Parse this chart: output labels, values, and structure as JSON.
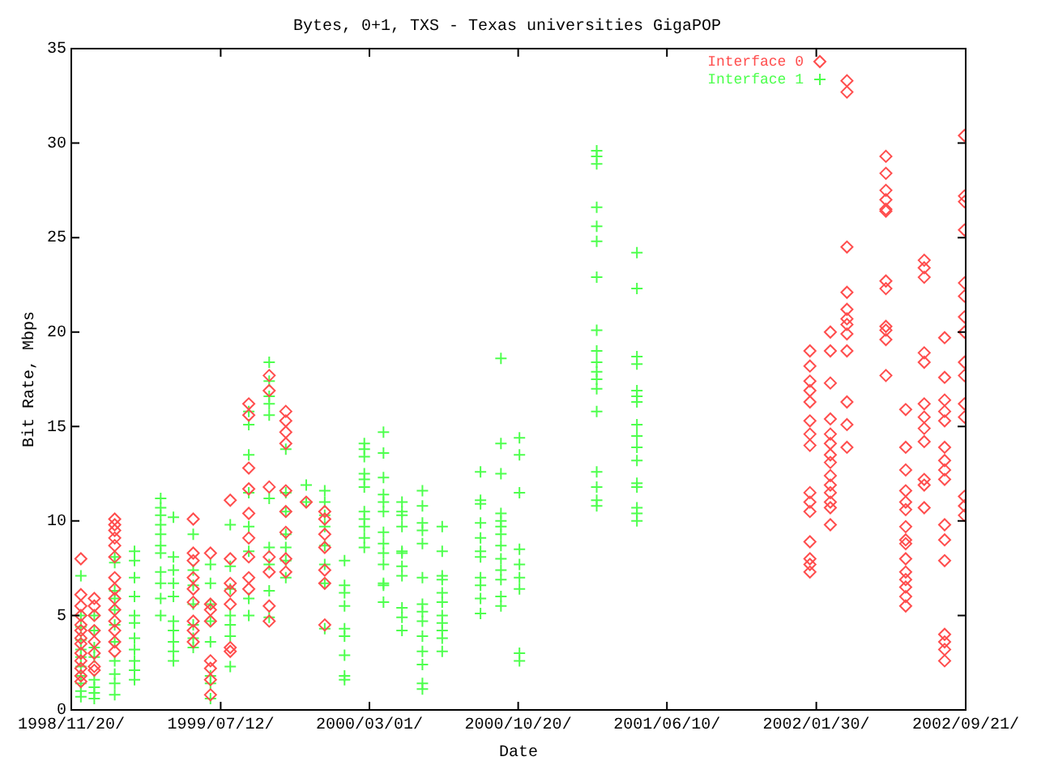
{
  "chart_data": {
    "type": "scatter",
    "title": "Bytes, 0+1, TXS - Texas universities GigaPOP",
    "xlabel": "Date",
    "ylabel": "Bit Rate, Mbps",
    "xlim": [
      "1998-11-20",
      "2002-09-21"
    ],
    "xticks": [
      {
        "value": "1998-11-20",
        "label": "1998/11/20/"
      },
      {
        "value": "1999-07-12",
        "label": "1999/07/12/"
      },
      {
        "value": "2000-03-01",
        "label": "2000/03/01/"
      },
      {
        "value": "2000-10-20",
        "label": "2000/10/20/"
      },
      {
        "value": "2001-06-10",
        "label": "2001/06/10/"
      },
      {
        "value": "2002-01-30",
        "label": "2002/01/30/"
      },
      {
        "value": "2002-09-21",
        "label": "2002/09/21/"
      }
    ],
    "ylim": [
      0,
      35
    ],
    "yticks": [
      0,
      5,
      10,
      15,
      20,
      25,
      30,
      35
    ],
    "grid": false,
    "legend": "top right",
    "series": [
      {
        "name": "Interface 0",
        "color": "#ff4d4d",
        "marker": "diamond",
        "x": [
          "1998-12-05",
          "1998-12-05",
          "1998-12-05",
          "1998-12-05",
          "1998-12-05",
          "1998-12-05",
          "1998-12-05",
          "1998-12-05",
          "1998-12-05",
          "1998-12-05",
          "1998-12-05",
          "1998-12-05",
          "1998-12-05",
          "1998-12-26",
          "1998-12-26",
          "1998-12-26",
          "1998-12-26",
          "1998-12-26",
          "1998-12-26",
          "1998-12-26",
          "1998-12-26",
          "1999-01-27",
          "1999-01-27",
          "1999-01-27",
          "1999-01-27",
          "1999-01-27",
          "1999-01-27",
          "1999-01-27",
          "1999-01-27",
          "1999-01-27",
          "1999-01-27",
          "1999-01-27",
          "1999-01-27",
          "1999-01-27",
          "1999-01-27",
          "1999-05-30",
          "1999-05-30",
          "1999-05-30",
          "1999-05-30",
          "1999-05-30",
          "1999-05-30",
          "1999-05-30",
          "1999-05-30",
          "1999-05-30",
          "1999-06-26",
          "1999-06-26",
          "1999-06-26",
          "1999-06-26",
          "1999-06-26",
          "1999-06-26",
          "1999-06-26",
          "1999-06-26",
          "1999-07-27",
          "1999-07-27",
          "1999-07-27",
          "1999-07-27",
          "1999-07-27",
          "1999-07-27",
          "1999-07-27",
          "1999-08-25",
          "1999-08-25",
          "1999-08-25",
          "1999-08-25",
          "1999-08-25",
          "1999-08-25",
          "1999-08-25",
          "1999-08-25",
          "1999-08-25",
          "1999-09-26",
          "1999-09-26",
          "1999-09-26",
          "1999-09-26",
          "1999-09-26",
          "1999-09-26",
          "1999-09-26",
          "1999-10-22",
          "1999-10-22",
          "1999-10-22",
          "1999-10-22",
          "1999-10-22",
          "1999-10-22",
          "1999-10-22",
          "1999-10-22",
          "1999-10-22",
          "1999-11-23",
          "1999-12-22",
          "1999-12-22",
          "1999-12-22",
          "1999-12-22",
          "1999-12-22",
          "1999-12-22",
          "1999-12-22",
          "2002-01-20",
          "2002-01-20",
          "2002-01-20",
          "2002-01-20",
          "2002-01-20",
          "2002-01-20",
          "2002-01-20",
          "2002-01-20",
          "2002-01-20",
          "2002-01-20",
          "2002-01-20",
          "2002-01-20",
          "2002-01-20",
          "2002-01-20",
          "2002-01-20",
          "2002-02-21",
          "2002-02-21",
          "2002-02-21",
          "2002-02-21",
          "2002-02-21",
          "2002-02-21",
          "2002-02-21",
          "2002-02-21",
          "2002-02-21",
          "2002-02-21",
          "2002-02-21",
          "2002-02-21",
          "2002-02-21",
          "2002-02-21",
          "2002-03-19",
          "2002-03-19",
          "2002-03-19",
          "2002-03-19",
          "2002-03-19",
          "2002-03-19",
          "2002-03-19",
          "2002-03-19",
          "2002-03-19",
          "2002-03-19",
          "2002-03-19",
          "2002-03-19",
          "2002-05-19",
          "2002-05-19",
          "2002-05-19",
          "2002-05-19",
          "2002-05-19",
          "2002-05-19",
          "2002-05-19",
          "2002-05-19",
          "2002-05-19",
          "2002-05-19",
          "2002-05-19",
          "2002-05-19",
          "2002-06-19",
          "2002-06-19",
          "2002-06-19",
          "2002-06-19",
          "2002-06-19",
          "2002-06-19",
          "2002-06-19",
          "2002-06-19",
          "2002-06-19",
          "2002-06-19",
          "2002-06-19",
          "2002-06-19",
          "2002-06-19",
          "2002-06-19",
          "2002-06-19",
          "2002-07-18",
          "2002-07-18",
          "2002-07-18",
          "2002-07-18",
          "2002-07-18",
          "2002-07-18",
          "2002-07-18",
          "2002-07-18",
          "2002-07-18",
          "2002-07-18",
          "2002-07-18",
          "2002-07-18",
          "2002-08-19",
          "2002-08-19",
          "2002-08-19",
          "2002-08-19",
          "2002-08-19",
          "2002-08-19",
          "2002-08-19",
          "2002-08-19",
          "2002-08-19",
          "2002-08-19",
          "2002-08-19",
          "2002-08-19",
          "2002-08-19",
          "2002-08-19",
          "2002-08-19",
          "2002-08-19",
          "2002-09-19",
          "2002-09-19",
          "2002-09-19",
          "2002-09-19",
          "2002-09-19",
          "2002-09-19",
          "2002-09-19",
          "2002-09-19",
          "2002-09-19",
          "2002-09-19",
          "2002-09-19",
          "2002-09-19",
          "2002-09-19",
          "2002-09-19",
          "2002-09-19"
        ],
        "values": [
          8.0,
          6.1,
          5.5,
          5.0,
          4.5,
          4.2,
          3.8,
          3.5,
          3.0,
          2.6,
          2.2,
          1.8,
          1.5,
          5.9,
          5.5,
          5.0,
          4.2,
          3.6,
          3.0,
          2.3,
          2.1,
          10.1,
          9.8,
          9.5,
          9.1,
          8.7,
          8.1,
          7.0,
          6.4,
          5.9,
          5.3,
          4.7,
          4.2,
          3.6,
          3.1,
          10.1,
          8.3,
          7.9,
          7.0,
          6.4,
          5.7,
          4.7,
          4.2,
          3.6,
          8.3,
          5.6,
          5.3,
          4.7,
          2.6,
          2.2,
          1.6,
          0.8,
          11.1,
          8.0,
          6.7,
          6.3,
          5.6,
          3.3,
          3.1,
          16.2,
          15.6,
          12.8,
          11.7,
          10.4,
          9.1,
          8.1,
          7.0,
          6.4,
          17.7,
          16.9,
          11.8,
          8.1,
          7.3,
          5.5,
          4.7,
          15.8,
          15.3,
          14.7,
          14.1,
          11.6,
          10.5,
          9.4,
          8.0,
          7.3,
          11.0,
          10.5,
          10.1,
          9.3,
          8.6,
          7.4,
          6.7,
          4.5,
          19.0,
          18.2,
          17.4,
          16.9,
          16.3,
          15.3,
          14.6,
          14.0,
          11.5,
          11.0,
          10.5,
          8.9,
          8.0,
          7.7,
          7.3,
          20.0,
          19.0,
          17.3,
          15.4,
          14.6,
          14.1,
          13.5,
          13.1,
          12.4,
          11.9,
          11.5,
          11.0,
          10.7,
          9.8,
          33.3,
          32.7,
          24.5,
          22.1,
          21.2,
          20.7,
          20.4,
          19.9,
          19.0,
          16.3,
          15.1,
          13.9,
          29.3,
          28.4,
          27.5,
          27.0,
          26.5,
          26.4,
          22.7,
          22.3,
          20.3,
          20.1,
          19.6,
          17.7,
          15.9,
          13.9,
          12.7,
          11.6,
          11.0,
          10.6,
          9.7,
          9.0,
          8.8,
          8.0,
          7.3,
          6.9,
          6.5,
          6.0,
          5.5,
          23.8,
          23.4,
          22.9,
          18.9,
          18.4,
          16.2,
          15.5,
          14.9,
          14.2,
          12.2,
          11.9,
          10.7,
          19.7,
          17.6,
          16.4,
          15.8,
          15.3,
          13.9,
          13.2,
          12.7,
          12.2,
          9.8,
          9.0,
          7.9,
          4.0,
          3.6,
          3.2,
          2.6,
          30.4,
          27.2,
          26.9,
          25.4,
          22.6,
          21.9,
          20.8,
          20.0,
          18.4,
          17.7,
          16.2,
          15.5,
          11.3,
          10.8,
          10.3
        ]
      },
      {
        "name": "Interface 1",
        "color": "#4dff4d",
        "marker": "cross",
        "x": [
          "1998-12-05",
          "1998-12-05",
          "1998-12-05",
          "1998-12-05",
          "1998-12-05",
          "1998-12-05",
          "1998-12-05",
          "1998-12-05",
          "1998-12-05",
          "1998-12-05",
          "1998-12-05",
          "1998-12-26",
          "1998-12-26",
          "1998-12-26",
          "1998-12-26",
          "1998-12-26",
          "1998-12-26",
          "1998-12-26",
          "1998-12-26",
          "1999-01-27",
          "1999-01-27",
          "1999-01-27",
          "1999-01-27",
          "1999-01-27",
          "1999-01-27",
          "1999-01-27",
          "1999-01-27",
          "1999-01-27",
          "1999-01-27",
          "1999-01-27",
          "1999-02-27",
          "1999-02-27",
          "1999-02-27",
          "1999-02-27",
          "1999-02-27",
          "1999-02-27",
          "1999-02-27",
          "1999-02-27",
          "1999-02-27",
          "1999-02-27",
          "1999-02-27",
          "1999-04-09",
          "1999-04-09",
          "1999-04-09",
          "1999-04-09",
          "1999-04-09",
          "1999-04-09",
          "1999-04-09",
          "1999-04-09",
          "1999-04-09",
          "1999-04-09",
          "1999-04-09",
          "1999-04-29",
          "1999-04-29",
          "1999-04-29",
          "1999-04-29",
          "1999-04-29",
          "1999-04-29",
          "1999-04-29",
          "1999-04-29",
          "1999-04-29",
          "1999-04-29",
          "1999-05-30",
          "1999-05-30",
          "1999-05-30",
          "1999-05-30",
          "1999-05-30",
          "1999-05-30",
          "1999-05-30",
          "1999-06-26",
          "1999-06-26",
          "1999-06-26",
          "1999-06-26",
          "1999-06-26",
          "1999-06-26",
          "1999-06-26",
          "1999-06-26",
          "1999-07-27",
          "1999-07-27",
          "1999-07-27",
          "1999-07-27",
          "1999-07-27",
          "1999-07-27",
          "1999-07-27",
          "1999-08-25",
          "1999-08-25",
          "1999-08-25",
          "1999-08-25",
          "1999-08-25",
          "1999-08-25",
          "1999-08-25",
          "1999-08-25",
          "1999-09-26",
          "1999-09-26",
          "1999-09-26",
          "1999-09-26",
          "1999-09-26",
          "1999-09-26",
          "1999-09-26",
          "1999-09-26",
          "1999-09-26",
          "1999-09-26",
          "1999-10-22",
          "1999-10-22",
          "1999-10-22",
          "1999-10-22",
          "1999-10-22",
          "1999-10-22",
          "1999-10-22",
          "1999-11-23",
          "1999-11-23",
          "1999-12-22",
          "1999-12-22",
          "1999-12-22",
          "1999-12-22",
          "1999-12-22",
          "1999-12-22",
          "1999-12-22",
          "1999-12-22",
          "2000-01-22",
          "2000-01-22",
          "2000-01-22",
          "2000-01-22",
          "2000-01-22",
          "2000-01-22",
          "2000-01-22",
          "2000-01-22",
          "2000-01-22",
          "2000-02-22",
          "2000-02-22",
          "2000-02-22",
          "2000-02-22",
          "2000-02-22",
          "2000-02-22",
          "2000-02-22",
          "2000-02-22",
          "2000-02-22",
          "2000-02-22",
          "2000-02-22",
          "2000-03-23",
          "2000-03-23",
          "2000-03-23",
          "2000-03-23",
          "2000-03-23",
          "2000-03-23",
          "2000-03-23",
          "2000-03-23",
          "2000-03-23",
          "2000-03-23",
          "2000-03-23",
          "2000-03-23",
          "2000-03-23",
          "2000-04-21",
          "2000-04-21",
          "2000-04-21",
          "2000-04-21",
          "2000-04-21",
          "2000-04-21",
          "2000-04-21",
          "2000-04-21",
          "2000-04-21",
          "2000-04-21",
          "2000-04-21",
          "2000-05-23",
          "2000-05-23",
          "2000-05-23",
          "2000-05-23",
          "2000-05-23",
          "2000-05-23",
          "2000-05-23",
          "2000-05-23",
          "2000-05-23",
          "2000-05-23",
          "2000-05-23",
          "2000-05-23",
          "2000-05-23",
          "2000-05-23",
          "2000-06-23",
          "2000-06-23",
          "2000-06-23",
          "2000-06-23",
          "2000-06-23",
          "2000-06-23",
          "2000-06-23",
          "2000-06-23",
          "2000-06-23",
          "2000-06-23",
          "2000-06-23",
          "2000-08-22",
          "2000-08-22",
          "2000-08-22",
          "2000-08-22",
          "2000-08-22",
          "2000-08-22",
          "2000-08-22",
          "2000-08-22",
          "2000-08-22",
          "2000-08-22",
          "2000-08-22",
          "2000-09-23",
          "2000-09-23",
          "2000-09-23",
          "2000-09-23",
          "2000-09-23",
          "2000-09-23",
          "2000-09-23",
          "2000-09-23",
          "2000-09-23",
          "2000-09-23",
          "2000-09-23",
          "2000-09-23",
          "2000-09-23",
          "2000-10-22",
          "2000-10-22",
          "2000-10-22",
          "2000-10-22",
          "2000-10-22",
          "2000-10-22",
          "2000-10-22",
          "2000-10-22",
          "2000-10-22",
          "2001-02-20",
          "2001-02-20",
          "2001-02-20",
          "2001-02-20",
          "2001-02-20",
          "2001-02-20",
          "2001-02-20",
          "2001-02-20",
          "2001-02-20",
          "2001-02-20",
          "2001-02-20",
          "2001-02-20",
          "2001-02-20",
          "2001-02-20",
          "2001-02-20",
          "2001-02-20",
          "2001-02-20",
          "2001-02-20",
          "2001-04-24",
          "2001-04-24",
          "2001-04-24",
          "2001-04-24",
          "2001-04-24",
          "2001-04-24",
          "2001-04-24",
          "2001-04-24",
          "2001-04-24",
          "2001-04-24",
          "2001-04-24",
          "2001-04-24",
          "2001-04-24",
          "2001-04-24",
          "2001-04-24",
          "2001-04-24"
        ],
        "values": [
          7.1,
          5.0,
          4.4,
          3.7,
          3.2,
          2.8,
          2.3,
          1.8,
          1.4,
          1.0,
          0.7,
          5.0,
          4.2,
          3.3,
          2.8,
          1.6,
          1.2,
          0.9,
          0.6,
          8.1,
          7.8,
          6.3,
          5.9,
          5.3,
          4.5,
          3.6,
          2.6,
          1.9,
          1.4,
          0.8,
          8.4,
          7.9,
          7.0,
          6.0,
          5.0,
          4.6,
          3.8,
          3.2,
          2.6,
          2.1,
          1.6,
          11.2,
          10.7,
          10.3,
          9.8,
          9.3,
          8.7,
          8.3,
          7.3,
          6.7,
          5.9,
          5.0,
          10.2,
          8.1,
          7.4,
          6.7,
          6.0,
          4.7,
          4.2,
          3.6,
          3.1,
          2.6,
          9.3,
          7.4,
          6.6,
          5.6,
          4.5,
          3.8,
          3.3,
          7.7,
          6.7,
          5.6,
          4.7,
          3.6,
          1.8,
          1.4,
          0.6,
          9.8,
          7.6,
          6.4,
          5.0,
          4.5,
          3.9,
          2.3,
          15.8,
          15.1,
          13.5,
          11.5,
          9.7,
          8.4,
          5.9,
          5.0,
          18.4,
          17.4,
          16.6,
          16.2,
          15.6,
          11.2,
          8.6,
          7.7,
          6.3,
          4.9,
          13.8,
          11.5,
          10.5,
          9.3,
          8.6,
          7.9,
          7.0,
          11.9,
          11.0,
          11.6,
          11.0,
          10.3,
          9.7,
          8.7,
          7.7,
          6.7,
          4.3,
          7.9,
          6.6,
          6.2,
          5.5,
          4.3,
          3.9,
          2.9,
          1.8,
          1.6,
          14.1,
          13.8,
          13.4,
          12.5,
          12.2,
          11.8,
          10.5,
          10.1,
          9.7,
          9.1,
          8.6,
          14.7,
          13.6,
          12.3,
          11.4,
          11.0,
          10.5,
          9.4,
          8.8,
          8.3,
          7.7,
          6.7,
          6.6,
          5.7,
          11.0,
          10.5,
          10.3,
          9.7,
          8.4,
          8.3,
          7.6,
          7.1,
          5.4,
          4.9,
          4.2,
          11.6,
          10.8,
          9.9,
          9.5,
          8.8,
          7.0,
          5.6,
          5.2,
          4.7,
          3.9,
          3.1,
          2.4,
          1.4,
          1.1,
          9.7,
          8.4,
          7.1,
          6.9,
          6.2,
          5.7,
          5.0,
          4.6,
          4.2,
          3.8,
          3.1,
          12.6,
          11.1,
          10.9,
          9.9,
          9.1,
          8.4,
          8.1,
          7.0,
          6.6,
          5.9,
          5.1,
          18.6,
          14.1,
          12.5,
          10.4,
          10.0,
          9.7,
          9.3,
          8.7,
          8.0,
          7.4,
          6.9,
          6.0,
          5.5,
          14.4,
          13.5,
          11.5,
          8.5,
          7.7,
          7.0,
          6.4,
          3.0,
          2.6,
          29.6,
          29.3,
          28.9,
          26.6,
          25.6,
          24.8,
          22.9,
          20.1,
          19.0,
          18.4,
          17.9,
          17.5,
          17.0,
          15.8,
          12.6,
          11.8,
          11.1,
          10.8,
          24.2,
          22.3,
          18.7,
          18.3,
          16.9,
          16.6,
          16.3,
          15.1,
          14.5,
          13.9,
          13.2,
          12.0,
          11.8,
          10.7,
          10.4,
          10.0
        ]
      }
    ]
  }
}
